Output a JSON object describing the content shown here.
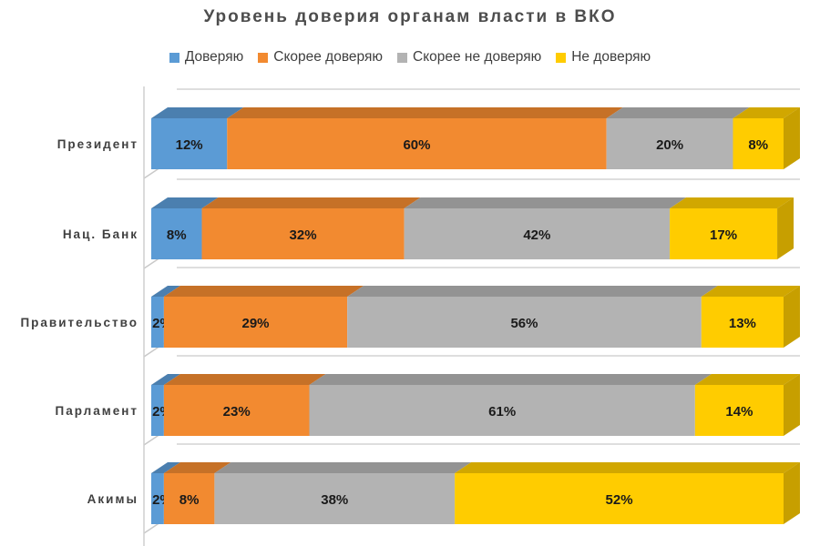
{
  "chart_data": {
    "type": "bar",
    "orientation": "horizontal",
    "stacked": true,
    "percent": true,
    "title": "Уровень доверия органам власти в ВКО",
    "categories": [
      "Президент",
      "Нац. Банк",
      "Правительство",
      "Парламент",
      "Акимы"
    ],
    "series": [
      {
        "name": "Доверяю",
        "values": [
          12,
          8,
          2,
          2,
          2
        ],
        "labels": [
          "12%",
          "8%",
          "2%",
          "2%",
          "2%"
        ],
        "color": "#5b9bd5"
      },
      {
        "name": "Скорее доверяю",
        "values": [
          60,
          32,
          29,
          23,
          8
        ],
        "labels": [
          "60%",
          "32%",
          "29%",
          "23%",
          "8%"
        ],
        "color": "#f28a30"
      },
      {
        "name": "Скорее не доверяю",
        "values": [
          20,
          42,
          56,
          61,
          38
        ],
        "labels": [
          "20%",
          "42%",
          "56%",
          "61%",
          "38%"
        ],
        "color": "#b3b3b3"
      },
      {
        "name": "Не доверяю",
        "values": [
          8,
          17,
          13,
          14,
          52
        ],
        "labels": [
          "8%",
          "17%",
          "13%",
          "14%",
          "52%"
        ],
        "color": "#ffcc00"
      }
    ],
    "xlim": [
      0,
      100
    ],
    "legend_position": "top",
    "xlabel": "",
    "ylabel": ""
  }
}
